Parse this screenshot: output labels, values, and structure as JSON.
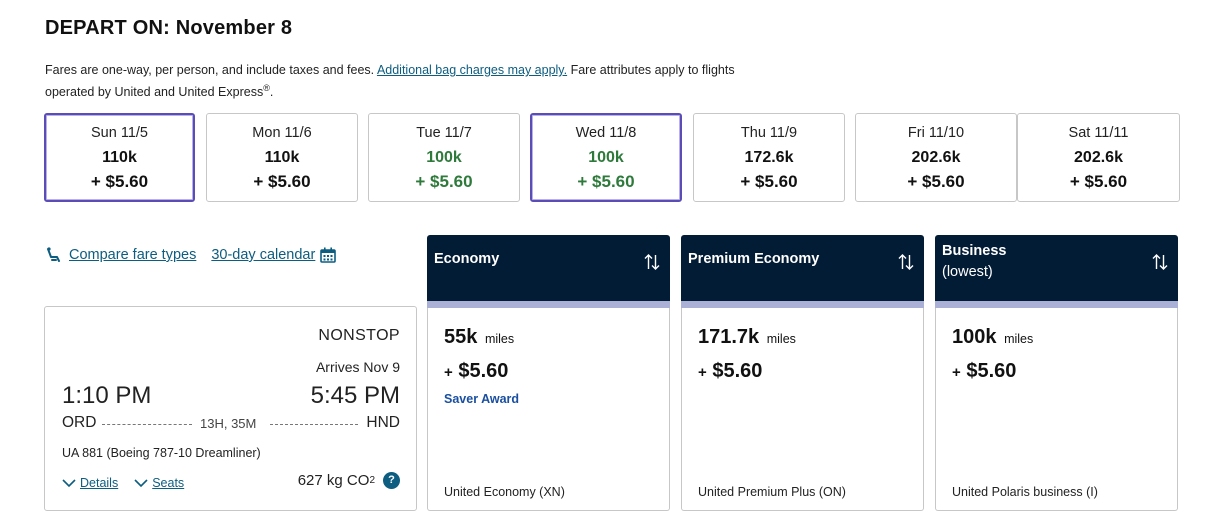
{
  "header": {
    "title": "DEPART ON: November 8",
    "note_before": "Fares are one-way, per person, and include taxes and fees.",
    "note_link": "Additional bag charges may apply.",
    "note_after": "Fare attributes apply to flights operated by United and United Express",
    "note_mark": "®",
    "note_end": "."
  },
  "dates": [
    {
      "label": "Sun 11/5",
      "miles": "110k",
      "tax": "+ $5.60"
    },
    {
      "label": "Mon 11/6",
      "miles": "110k",
      "tax": "+ $5.60"
    },
    {
      "label": "Tue 11/7",
      "miles": "100k",
      "tax": "+ $5.60"
    },
    {
      "label": "Wed 11/8",
      "miles": "100k",
      "tax": "+ $5.60"
    },
    {
      "label": "Thu 11/9",
      "miles": "172.6k",
      "tax": "+ $5.60"
    },
    {
      "label": "Fri 11/10",
      "miles": "202.6k",
      "tax": "+ $5.60"
    },
    {
      "label": "Sat 11/11",
      "miles": "202.6k",
      "tax": "+ $5.60"
    }
  ],
  "links": {
    "compare": "Compare fare types",
    "calendar": "30-day calendar"
  },
  "flight": {
    "stops": "NONSTOP",
    "arrives": "Arrives Nov 9",
    "depart_time": "1:10 PM",
    "arrive_time": "5:45 PM",
    "origin": "ORD",
    "destination": "HND",
    "duration": "13H, 35M",
    "flight_number": "UA 881 (Boeing 787-10 Dreamliner)",
    "details": "Details",
    "seats": "Seats",
    "co2_value": "627 kg CO",
    "co2_sub": "2",
    "help": "?"
  },
  "cabins": [
    {
      "title": "Economy",
      "subtitle": "",
      "miles": "55k",
      "miles_unit": "miles",
      "plus": "+",
      "tax": "$5.60",
      "award": "Saver Award",
      "fare": "United Economy (XN)"
    },
    {
      "title": "Premium Economy",
      "subtitle": "",
      "miles": "171.7k",
      "miles_unit": "miles",
      "plus": "+",
      "tax": "$5.60",
      "award": "",
      "fare": "United Premium Plus (ON)"
    },
    {
      "title": "Business",
      "subtitle": "(lowest)",
      "miles": "100k",
      "miles_unit": "miles",
      "plus": "+",
      "tax": "$5.60",
      "award": "",
      "fare": "United Polaris business (I)"
    }
  ],
  "colors": {
    "accent_link": "#0c5d80",
    "selected_border": "#5a4db8",
    "low_fare": "#2e7a3b",
    "cabin_header": "#031c36",
    "cabin_bar": "#abb1d6"
  },
  "icons": {
    "compare": "seat-icon",
    "calendar": "calendar-icon",
    "sort": "sort-arrows-icon",
    "expand": "chevron-down-icon"
  }
}
